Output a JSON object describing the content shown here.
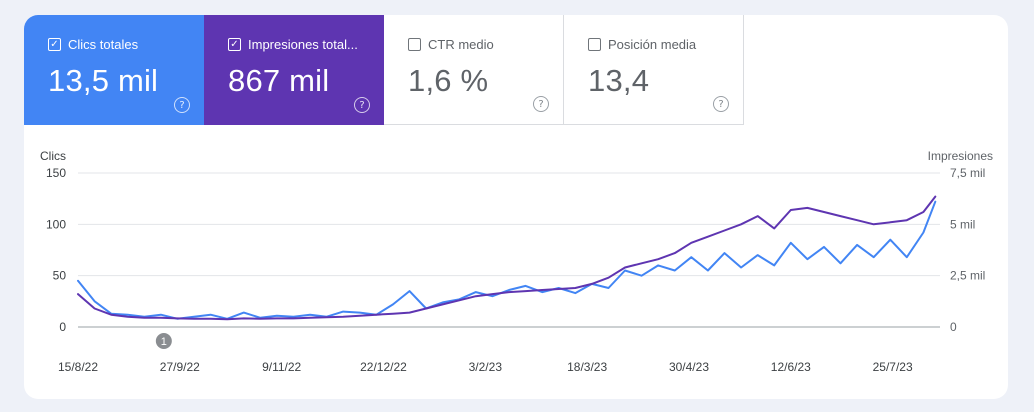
{
  "metrics": {
    "clicks": {
      "label": "Clics totales",
      "value": "13,5 mil",
      "checked": true,
      "color": "#4285f4"
    },
    "impressions": {
      "label": "Impresiones total...",
      "value": "867 mil",
      "checked": true,
      "color": "#5e35b1"
    },
    "ctr": {
      "label": "CTR medio",
      "value": "1,6 %",
      "checked": false
    },
    "position": {
      "label": "Posición media",
      "value": "13,4",
      "checked": false
    }
  },
  "help_glyph": "?",
  "chart_data": {
    "type": "line",
    "left_axis_label": "Clics",
    "right_axis_label": "Impresiones",
    "left_ticks": [
      "0",
      "50",
      "100",
      "150"
    ],
    "right_ticks": [
      "0",
      "2,5 mil",
      "5 mil",
      "7,5 mil"
    ],
    "ylim_left": [
      0,
      150
    ],
    "ylim_right": [
      0,
      7500
    ],
    "x_labels": [
      "15/8/22",
      "27/9/22",
      "9/11/22",
      "22/12/22",
      "3/2/23",
      "18/3/23",
      "30/4/23",
      "12/6/23",
      "25/7/23"
    ],
    "x_dates": [
      "2022-08-15",
      "2022-09-27",
      "2022-11-09",
      "2022-12-22",
      "2023-02-03",
      "2023-03-18",
      "2023-04-30",
      "2023-06-12",
      "2023-07-25"
    ],
    "annotation": {
      "label": "1",
      "date": "2022-09-27"
    },
    "series": [
      {
        "name": "Clics totales",
        "axis": "left",
        "color": "#4285f4",
        "points": [
          [
            "2022-08-15",
            45
          ],
          [
            "2022-08-22",
            25
          ],
          [
            "2022-08-29",
            13
          ],
          [
            "2022-09-05",
            12
          ],
          [
            "2022-09-12",
            10
          ],
          [
            "2022-09-19",
            12
          ],
          [
            "2022-09-26",
            8
          ],
          [
            "2022-10-03",
            10
          ],
          [
            "2022-10-10",
            12
          ],
          [
            "2022-10-17",
            8
          ],
          [
            "2022-10-24",
            14
          ],
          [
            "2022-10-31",
            9
          ],
          [
            "2022-11-07",
            11
          ],
          [
            "2022-11-14",
            10
          ],
          [
            "2022-11-21",
            12
          ],
          [
            "2022-11-28",
            10
          ],
          [
            "2022-12-05",
            15
          ],
          [
            "2022-12-12",
            14
          ],
          [
            "2022-12-19",
            12
          ],
          [
            "2022-12-26",
            22
          ],
          [
            "2023-01-02",
            35
          ],
          [
            "2023-01-09",
            18
          ],
          [
            "2023-01-16",
            24
          ],
          [
            "2023-01-23",
            27
          ],
          [
            "2023-01-30",
            34
          ],
          [
            "2023-02-06",
            30
          ],
          [
            "2023-02-13",
            36
          ],
          [
            "2023-02-20",
            40
          ],
          [
            "2023-02-27",
            34
          ],
          [
            "2023-03-06",
            38
          ],
          [
            "2023-03-13",
            33
          ],
          [
            "2023-03-20",
            42
          ],
          [
            "2023-03-27",
            38
          ],
          [
            "2023-04-03",
            55
          ],
          [
            "2023-04-10",
            50
          ],
          [
            "2023-04-17",
            60
          ],
          [
            "2023-04-24",
            55
          ],
          [
            "2023-05-01",
            68
          ],
          [
            "2023-05-08",
            55
          ],
          [
            "2023-05-15",
            72
          ],
          [
            "2023-05-22",
            58
          ],
          [
            "2023-05-29",
            70
          ],
          [
            "2023-06-05",
            60
          ],
          [
            "2023-06-12",
            82
          ],
          [
            "2023-06-19",
            66
          ],
          [
            "2023-06-26",
            78
          ],
          [
            "2023-07-03",
            62
          ],
          [
            "2023-07-10",
            80
          ],
          [
            "2023-07-17",
            68
          ],
          [
            "2023-07-24",
            85
          ],
          [
            "2023-07-31",
            68
          ],
          [
            "2023-08-07",
            92
          ],
          [
            "2023-08-12",
            122
          ]
        ]
      },
      {
        "name": "Impresiones totales",
        "axis": "right",
        "color": "#5e35b1",
        "points": [
          [
            "2022-08-15",
            1600
          ],
          [
            "2022-08-22",
            900
          ],
          [
            "2022-08-29",
            600
          ],
          [
            "2022-09-05",
            500
          ],
          [
            "2022-09-12",
            450
          ],
          [
            "2022-09-19",
            450
          ],
          [
            "2022-09-26",
            420
          ],
          [
            "2022-10-03",
            400
          ],
          [
            "2022-10-10",
            400
          ],
          [
            "2022-10-17",
            380
          ],
          [
            "2022-10-24",
            420
          ],
          [
            "2022-10-31",
            400
          ],
          [
            "2022-11-07",
            420
          ],
          [
            "2022-11-14",
            420
          ],
          [
            "2022-11-21",
            450
          ],
          [
            "2022-11-28",
            470
          ],
          [
            "2022-12-05",
            500
          ],
          [
            "2022-12-12",
            550
          ],
          [
            "2022-12-19",
            600
          ],
          [
            "2022-12-26",
            650
          ],
          [
            "2023-01-02",
            700
          ],
          [
            "2023-01-09",
            900
          ],
          [
            "2023-01-16",
            1100
          ],
          [
            "2023-01-23",
            1300
          ],
          [
            "2023-01-30",
            1500
          ],
          [
            "2023-02-06",
            1600
          ],
          [
            "2023-02-13",
            1700
          ],
          [
            "2023-02-20",
            1750
          ],
          [
            "2023-02-27",
            1800
          ],
          [
            "2023-03-06",
            1850
          ],
          [
            "2023-03-13",
            1900
          ],
          [
            "2023-03-20",
            2100
          ],
          [
            "2023-03-27",
            2400
          ],
          [
            "2023-04-03",
            2900
          ],
          [
            "2023-04-10",
            3100
          ],
          [
            "2023-04-17",
            3300
          ],
          [
            "2023-04-24",
            3600
          ],
          [
            "2023-05-01",
            4100
          ],
          [
            "2023-05-08",
            4400
          ],
          [
            "2023-05-15",
            4700
          ],
          [
            "2023-05-22",
            5000
          ],
          [
            "2023-05-29",
            5400
          ],
          [
            "2023-06-05",
            4800
          ],
          [
            "2023-06-12",
            5700
          ],
          [
            "2023-06-19",
            5800
          ],
          [
            "2023-06-26",
            5600
          ],
          [
            "2023-07-03",
            5400
          ],
          [
            "2023-07-10",
            5200
          ],
          [
            "2023-07-17",
            5000
          ],
          [
            "2023-07-24",
            5100
          ],
          [
            "2023-07-31",
            5200
          ],
          [
            "2023-08-07",
            5600
          ],
          [
            "2023-08-12",
            6350
          ]
        ]
      }
    ]
  }
}
